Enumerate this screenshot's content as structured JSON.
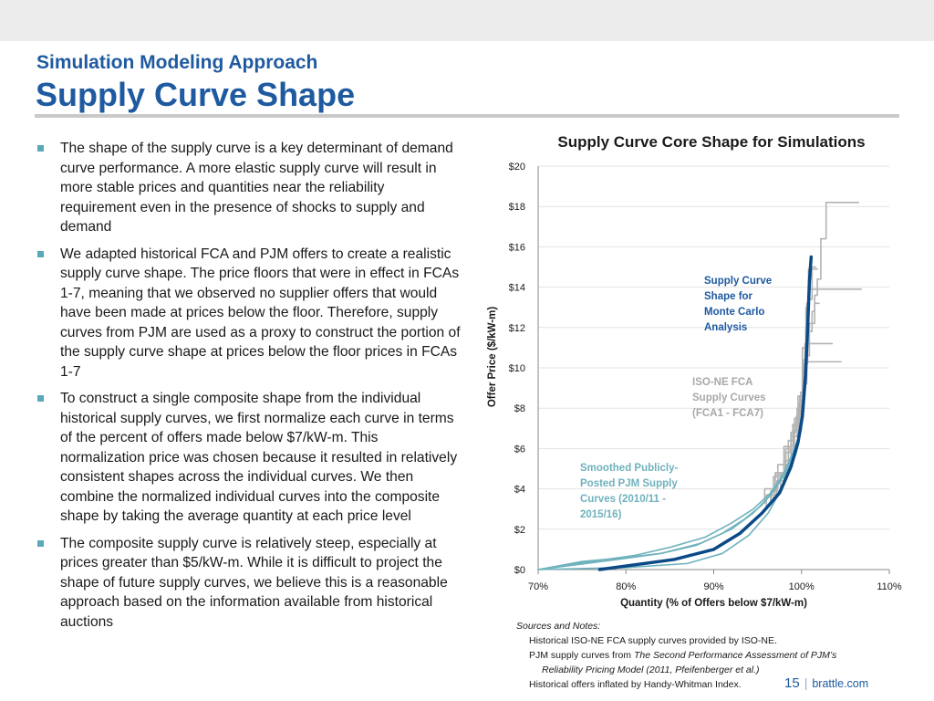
{
  "header": {
    "subtitle": "Simulation Modeling Approach",
    "title": "Supply Curve Shape"
  },
  "bullets": [
    "The shape of the supply curve is a key determinant of demand curve performance. A more elastic supply curve will result in more stable prices and quantities near the reliability requirement even in the presence of shocks to supply and demand",
    "We adapted historical FCA and PJM offers to create a realistic supply curve shape. The price floors that were in effect in FCAs 1-7, meaning that we observed no supplier offers that would have been made at prices below the floor. Therefore, supply curves from PJM are used as a proxy to construct the portion of the supply curve shape at prices below the floor prices in FCAs 1-7",
    "To construct a single composite shape from the individual historical supply curves, we first normalize each curve in terms of the percent of offers made below $7/kW-m. This normalization price was chosen because it resulted in relatively consistent shapes across the individual curves. We then combine the normalized individual curves into the composite shape by taking the average quantity at each price level",
    "The composite supply curve is relatively steep, especially at prices greater than $5/kW-m.  While it is difficult to project the shape of future supply curves, we believe this is a reasonable approach based on the information available from historical auctions"
  ],
  "chart_data": {
    "type": "line",
    "title": "Supply Curve Core Shape for Simulations",
    "xlabel": "Quantity (% of Offers below $7/kW-m)",
    "ylabel": "Offer Price ($/kW-m)",
    "xlim": [
      70,
      110
    ],
    "ylim": [
      0,
      20
    ],
    "x_ticks": [
      70,
      80,
      90,
      100,
      110
    ],
    "x_tick_labels": [
      "70%",
      "80%",
      "90%",
      "100%",
      "110%"
    ],
    "y_ticks": [
      0,
      2,
      4,
      6,
      8,
      10,
      12,
      14,
      16,
      18,
      20
    ],
    "y_tick_labels": [
      "$0",
      "$2",
      "$4",
      "$6",
      "$8",
      "$10",
      "$12",
      "$14",
      "$16",
      "$18",
      "$20"
    ],
    "grid": true,
    "colors": {
      "composite": "#0b4a86",
      "fca": "#b3b3b3",
      "pjm": "#6fb2bd"
    },
    "annotations": [
      {
        "text": [
          "Supply Curve",
          "Shape for",
          "Monte Carlo",
          "Analysis"
        ],
        "color": "#1f5aa0",
        "series": "composite"
      },
      {
        "text": [
          "ISO-NE FCA",
          "Supply Curves",
          "(FCA1 - FCA7)"
        ],
        "color": "#a8a8a8",
        "series": "fca"
      },
      {
        "text": [
          "Smoothed Publicly-",
          "Posted PJM Supply",
          "Curves (2010/11 -",
          "2015/16)"
        ],
        "color": "#6fb2bd",
        "series": "pjm"
      }
    ],
    "series": [
      {
        "group": "fca",
        "x": [
          96.5,
          97.2,
          98,
          98.5,
          99.2,
          100,
          100.3,
          100.6,
          100.9,
          101.5,
          101.8,
          102.2,
          102.8,
          103.2,
          106.5
        ],
        "y": [
          3.2,
          3.6,
          4.4,
          5.4,
          6.4,
          7.5,
          8.4,
          9.8,
          10.6,
          12.2,
          13.6,
          14.4,
          16.4,
          18.2,
          18.2
        ]
      },
      {
        "group": "fca",
        "x": [
          96,
          97,
          98.2,
          99.2,
          99.8,
          100.2,
          100.5,
          100.8,
          101.2,
          101.6
        ],
        "y": [
          3.0,
          3.7,
          4.7,
          6.0,
          7.1,
          8.6,
          10.4,
          12.0,
          13.4,
          15.0
        ]
      },
      {
        "group": "fca",
        "x": [
          95.8,
          97.3,
          98.8,
          99.5,
          100.1,
          100.4,
          100.7,
          101.8,
          103.5
        ],
        "y": [
          3.3,
          4.0,
          5.2,
          6.6,
          8.0,
          9.5,
          11.2,
          11.2,
          11.2
        ]
      },
      {
        "group": "fca",
        "x": [
          96.5,
          97.6,
          98.5,
          99.1,
          99.7,
          100.2,
          100.6,
          101.1,
          102.2,
          104.5
        ],
        "y": [
          3.4,
          3.9,
          4.8,
          5.9,
          6.9,
          8.2,
          9.2,
          10.3,
          10.3,
          10.3
        ]
      },
      {
        "group": "fca",
        "x": [
          96.8,
          98.2,
          98.8,
          99.4,
          99.9,
          100.3,
          100.7,
          101.2,
          101.5,
          102
        ],
        "y": [
          3.8,
          4.6,
          5.8,
          6.8,
          7.6,
          8.8,
          10.2,
          11.8,
          12.8,
          13.2
        ]
      },
      {
        "group": "fca",
        "x": [
          97,
          98,
          99,
          99.6,
          100.1,
          100.5,
          100.8,
          101.0,
          101.4,
          101.8
        ],
        "y": [
          4.1,
          4.8,
          6.1,
          7.2,
          8.6,
          11.0,
          13.0,
          14.9,
          14.9,
          14.9
        ]
      },
      {
        "group": "fca",
        "x": [
          100.6,
          100.8,
          101.0,
          101.3,
          101.8,
          103.0,
          106.8
        ],
        "y": [
          12.4,
          13.2,
          13.9,
          13.9,
          13.9,
          13.9,
          13.9
        ]
      },
      {
        "group": "pjm",
        "x": [
          70,
          75,
          80,
          84,
          88,
          91,
          93.5,
          95.5,
          97,
          98.5,
          99.5,
          100
        ],
        "y": [
          0,
          0.4,
          0.6,
          0.8,
          1.2,
          1.8,
          2.5,
          3.2,
          4.0,
          5.0,
          6.2,
          7.0
        ]
      },
      {
        "group": "pjm",
        "x": [
          70,
          76,
          81,
          85,
          89,
          92,
          94.5,
          96.5,
          98,
          99.2,
          100
        ],
        "y": [
          0,
          0.4,
          0.7,
          1.1,
          1.6,
          2.3,
          3.0,
          3.8,
          4.8,
          6.0,
          7.0
        ]
      },
      {
        "group": "pjm",
        "x": [
          70,
          80,
          87,
          91,
          94,
          96.2,
          98,
          99.4,
          100
        ],
        "y": [
          0,
          0.1,
          0.3,
          0.8,
          1.7,
          2.8,
          4.2,
          5.8,
          7.0
        ]
      },
      {
        "group": "pjm",
        "x": [
          70,
          79,
          84,
          88.5,
          92,
          94.5,
          96.5,
          98.2,
          99.4,
          100
        ],
        "y": [
          0,
          0.5,
          0.8,
          1.3,
          2.0,
          2.8,
          3.7,
          4.9,
          6.2,
          7.0
        ]
      },
      {
        "group": "composite",
        "x": [
          77,
          85.5,
          90,
          93,
          95.5,
          97.5,
          98.8,
          99.6,
          100.1,
          100.45,
          100.7,
          100.9,
          101.1
        ],
        "y": [
          0,
          0.5,
          1.0,
          1.8,
          2.8,
          3.8,
          5.1,
          6.3,
          7.6,
          9.6,
          12.0,
          14.3,
          15.5
        ]
      }
    ]
  },
  "notes": {
    "heading": "Sources and Notes:",
    "line1": "Historical ISO-NE FCA supply curves provided by ISO-NE.",
    "line2_prefix": "PJM supply curves from ",
    "line2_italic": "The Second Performance Assessment of PJM’s",
    "line3_italic": "Reliability Pricing Model (2011, Pfeifenberger et al.)",
    "line4": "Historical offers inflated by Handy-Whitman Index."
  },
  "footer": {
    "page": "15",
    "separator": "|",
    "site": "brattle.com"
  }
}
